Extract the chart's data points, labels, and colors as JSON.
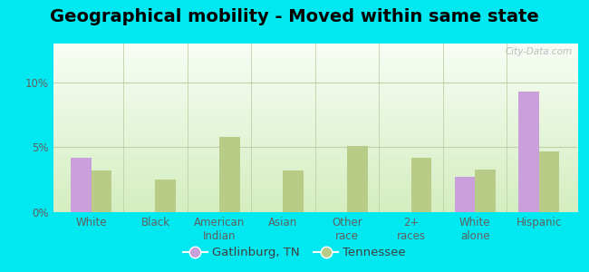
{
  "title": "Geographical mobility - Moved within same state",
  "categories": [
    "White",
    "Black",
    "American\nIndian",
    "Asian",
    "Other\nrace",
    "2+\nraces",
    "White\nalone",
    "Hispanic"
  ],
  "gatlinburg_values": [
    4.2,
    0,
    0,
    0,
    0,
    0,
    2.7,
    9.3
  ],
  "tennessee_values": [
    3.2,
    2.5,
    5.8,
    3.2,
    5.1,
    4.2,
    3.3,
    4.7
  ],
  "gatlinburg_color": "#c9a0dc",
  "tennessee_color": "#b8cc88",
  "ylim": [
    0,
    13
  ],
  "yticks": [
    0,
    5,
    10
  ],
  "ytick_labels": [
    "0%",
    "5%",
    "10%"
  ],
  "background_outer": "#00e8f0",
  "grid_color": "#c0d0a8",
  "bar_width": 0.32,
  "legend_gatlinburg": "Gatlinburg, TN",
  "legend_tennessee": "Tennessee",
  "title_fontsize": 14,
  "tick_fontsize": 8.5,
  "legend_fontsize": 9.5,
  "watermark": "City-Data.com"
}
